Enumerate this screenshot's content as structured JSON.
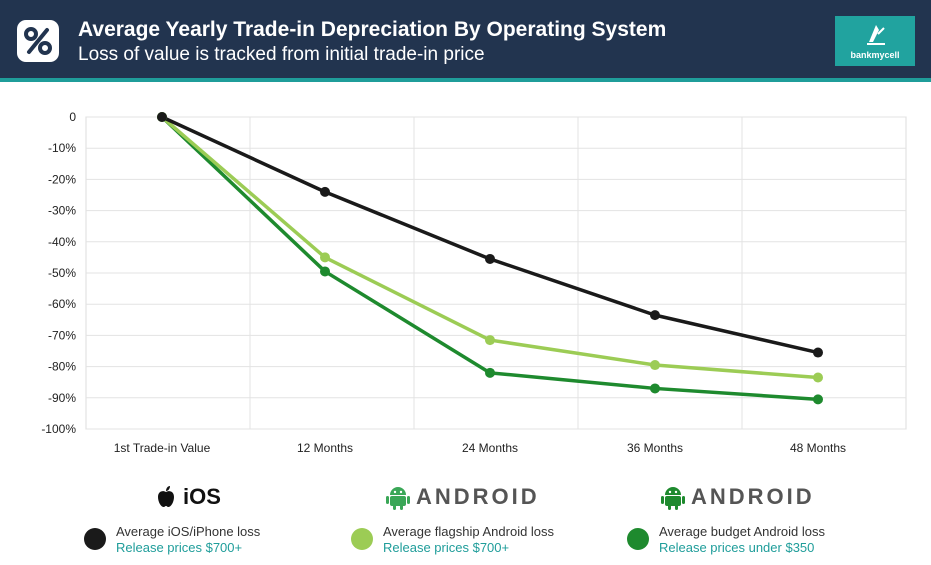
{
  "header": {
    "title": "Average Yearly Trade-in Depreciation By Operating System",
    "subtitle": "Loss of value is tracked from initial trade-in price",
    "badge_icon": "percent-icon",
    "brand": "bankmycell",
    "brand_icon": "bankmycell-logo-icon"
  },
  "chart_data": {
    "type": "line",
    "title": "Average Yearly Trade-in Depreciation By Operating System",
    "subtitle": "Loss of value is tracked from initial trade-in price",
    "categories": [
      "1st Trade-in Value",
      "12 Months",
      "24 Months",
      "36 Months",
      "48 Months"
    ],
    "y_ticks": [
      "0",
      "-10%",
      "-20%",
      "-30%",
      "-40%",
      "-50%",
      "-60%",
      "-70%",
      "-80%",
      "-90%",
      "-100%"
    ],
    "ylim": [
      -100,
      0
    ],
    "grid": true,
    "series": [
      {
        "name": "Average iOS/iPhone loss",
        "color": "#1a1a1a",
        "values": [
          0,
          -24,
          -45.5,
          -63.5,
          -75.5
        ]
      },
      {
        "name": "Average flagship Android loss",
        "color": "#9ccc55",
        "values": [
          0,
          -45,
          -71.5,
          -79.5,
          -83.5
        ]
      },
      {
        "name": "Average budget Android loss",
        "color": "#1e8a2e",
        "values": [
          0,
          -49.5,
          -82,
          -87,
          -90.5
        ]
      }
    ]
  },
  "legend": {
    "ios_label": "iOS",
    "android_label": "ANDROID",
    "ios_icon": "apple-icon",
    "android_icon": "android-robot-icon",
    "items": [
      {
        "name": "Average iOS/iPhone loss",
        "note": "Release prices $700+",
        "color": "#1a1a1a"
      },
      {
        "name": "Average flagship Android loss",
        "note": "Release prices $700+",
        "color": "#9ccc55"
      },
      {
        "name": "Average budget Android loss",
        "note": "Release prices under $350",
        "color": "#1e8a2e"
      }
    ]
  }
}
